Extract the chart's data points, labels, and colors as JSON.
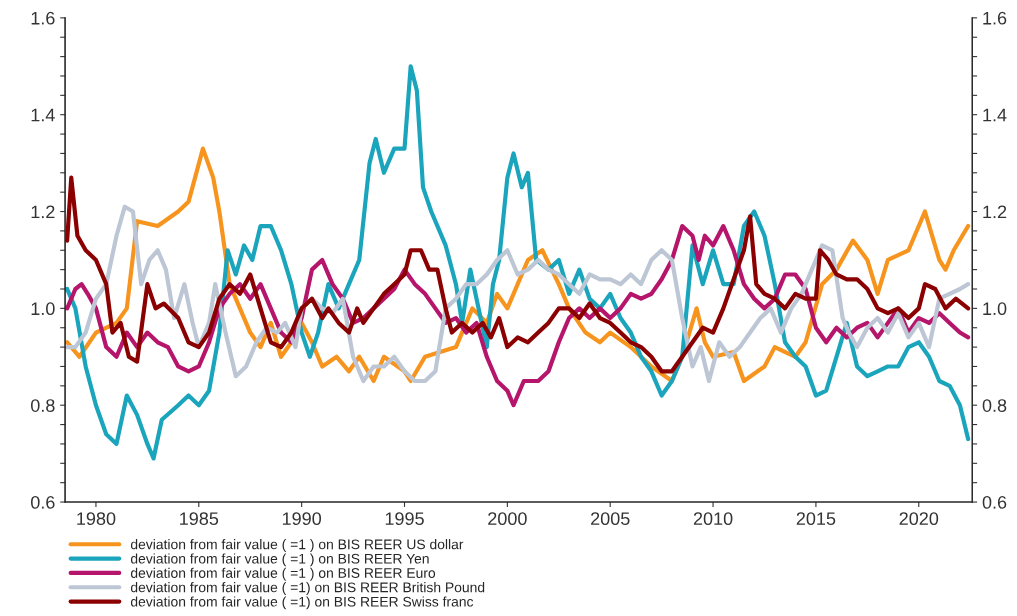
{
  "chart_data": {
    "type": "line",
    "xlim": [
      1978.5,
      2022.6
    ],
    "xticks": [
      1980,
      1985,
      1990,
      1995,
      2000,
      2005,
      2010,
      2015,
      2020
    ],
    "ylim": [
      0.6,
      1.6
    ],
    "yticks": [
      {
        "value": 0.6,
        "label": "0.6"
      },
      {
        "value": 0.64,
        "label": null
      },
      {
        "value": 0.68,
        "label": null
      },
      {
        "value": 0.72,
        "label": null
      },
      {
        "value": 0.76,
        "label": null
      },
      {
        "value": 0.8,
        "label": "0.8"
      },
      {
        "value": 0.84,
        "label": null
      },
      {
        "value": 0.88,
        "label": null
      },
      {
        "value": 0.92,
        "label": null
      },
      {
        "value": 0.96,
        "label": null
      },
      {
        "value": 1.0,
        "label": "1.0"
      },
      {
        "value": 1.04,
        "label": null
      },
      {
        "value": 1.08,
        "label": null
      },
      {
        "value": 1.12,
        "label": null
      },
      {
        "value": 1.16,
        "label": null
      },
      {
        "value": 1.2,
        "label": "1.2"
      },
      {
        "value": 1.24,
        "label": null
      },
      {
        "value": 1.28,
        "label": null
      },
      {
        "value": 1.32,
        "label": null
      },
      {
        "value": 1.36,
        "label": null
      },
      {
        "value": 1.4,
        "label": "1.4"
      },
      {
        "value": 1.44,
        "label": null
      },
      {
        "value": 1.48,
        "label": null
      },
      {
        "value": 1.52,
        "label": null
      },
      {
        "value": 1.56,
        "label": null
      },
      {
        "value": 1.6,
        "label": "1.6"
      }
    ],
    "y2lim": [
      0.6,
      1.6
    ],
    "y2ticks": [
      {
        "value": 0.6,
        "label": "0.6"
      },
      {
        "value": 0.64,
        "label": null
      },
      {
        "value": 0.68,
        "label": null
      },
      {
        "value": 0.72,
        "label": null
      },
      {
        "value": 0.76,
        "label": null
      },
      {
        "value": 0.8,
        "label": "0.8"
      },
      {
        "value": 0.84,
        "label": null
      },
      {
        "value": 0.88,
        "label": null
      },
      {
        "value": 0.92,
        "label": null
      },
      {
        "value": 0.96,
        "label": null
      },
      {
        "value": 1.0,
        "label": "1.0"
      },
      {
        "value": 1.04,
        "label": null
      },
      {
        "value": 1.08,
        "label": null
      },
      {
        "value": 1.12,
        "label": null
      },
      {
        "value": 1.16,
        "label": null
      },
      {
        "value": 1.2,
        "label": "1.2"
      },
      {
        "value": 1.24,
        "label": null
      },
      {
        "value": 1.28,
        "label": null
      },
      {
        "value": 1.32,
        "label": null
      },
      {
        "value": 1.36,
        "label": null
      },
      {
        "value": 1.4,
        "label": "1.4"
      },
      {
        "value": 1.44,
        "label": null
      },
      {
        "value": 1.48,
        "label": null
      },
      {
        "value": 1.52,
        "label": null
      },
      {
        "value": 1.56,
        "label": null
      },
      {
        "value": 1.6,
        "label": "1.6"
      }
    ],
    "legend": "bottom",
    "marker": "none",
    "line_style": "solid",
    "series": [
      {
        "name": "deviation from fair value ( =1 ) on BIS REER US dollar",
        "color": "#f7941d",
        "x": [
          1978.6,
          1979.2,
          1980,
          1981,
          1981.5,
          1982,
          1983,
          1984,
          1984.5,
          1985.2,
          1985.7,
          1986,
          1986.5,
          1987,
          1987.5,
          1988,
          1988.5,
          1989,
          1989.5,
          1990,
          1990.5,
          1991,
          1991.7,
          1992.3,
          1992.8,
          1993.5,
          1994,
          1995,
          1995.3,
          1996,
          1997.5,
          1998.3,
          1999,
          1999.5,
          2000,
          2001,
          2001.7,
          2002.5,
          2003,
          2003.8,
          2004.5,
          2005,
          2006,
          2007,
          2008,
          2008.5,
          2009.2,
          2009.6,
          2010,
          2011,
          2011.5,
          2012.5,
          2013,
          2014,
          2014.5,
          2015.3,
          2016,
          2016.8,
          2017.5,
          2018,
          2018.5,
          2019.5,
          2020.3,
          2021,
          2021.3,
          2021.7,
          2022.4
        ],
        "values": [
          0.93,
          0.9,
          0.95,
          0.97,
          1.0,
          1.18,
          1.17,
          1.2,
          1.22,
          1.33,
          1.27,
          1.2,
          1.05,
          1.0,
          0.95,
          0.92,
          0.97,
          0.9,
          0.93,
          0.97,
          0.93,
          0.88,
          0.9,
          0.87,
          0.9,
          0.85,
          0.9,
          0.87,
          0.85,
          0.9,
          0.92,
          1.0,
          0.97,
          1.03,
          1.0,
          1.1,
          1.12,
          1.05,
          1.0,
          0.95,
          0.93,
          0.95,
          0.92,
          0.88,
          0.85,
          0.9,
          1.0,
          0.93,
          0.9,
          0.91,
          0.85,
          0.88,
          0.92,
          0.9,
          0.93,
          1.05,
          1.08,
          1.14,
          1.1,
          1.03,
          1.1,
          1.12,
          1.2,
          1.1,
          1.08,
          1.12,
          1.17
        ]
      },
      {
        "name": "deviation from fair value ( =1 ) on BIS REER Yen",
        "color": "#1aa5bd",
        "x": [
          1978.6,
          1979,
          1979.5,
          1980,
          1980.5,
          1981,
          1981.5,
          1982,
          1982.5,
          1982.8,
          1983.2,
          1984,
          1984.5,
          1985,
          1985.5,
          1986,
          1986.4,
          1986.8,
          1987.2,
          1987.6,
          1988,
          1988.5,
          1989,
          1989.5,
          1990,
          1990.4,
          1990.8,
          1991.3,
          1991.8,
          1992.3,
          1992.8,
          1993.3,
          1993.6,
          1994,
          1994.5,
          1995,
          1995.3,
          1995.6,
          1995.9,
          1996.3,
          1997,
          1997.5,
          1997.8,
          1998.2,
          1998.7,
          1999,
          1999.3,
          1999.6,
          2000,
          2000.3,
          2000.7,
          2001,
          2001.4,
          2002,
          2002.5,
          2003,
          2003.5,
          2004,
          2004.5,
          2005,
          2005.5,
          2006,
          2006.5,
          2007,
          2007.5,
          2008,
          2008.5,
          2009,
          2009.5,
          2010,
          2010.5,
          2011,
          2011.5,
          2012,
          2012.5,
          2013,
          2013.5,
          2014,
          2014.5,
          2015,
          2015.5,
          2016,
          2016.5,
          2017,
          2017.5,
          2018,
          2018.5,
          2019,
          2019.5,
          2020,
          2020.5,
          2021,
          2021.5,
          2022,
          2022.4
        ],
        "values": [
          1.04,
          1.0,
          0.88,
          0.8,
          0.74,
          0.72,
          0.82,
          0.78,
          0.72,
          0.69,
          0.77,
          0.8,
          0.82,
          0.8,
          0.83,
          0.95,
          1.12,
          1.07,
          1.13,
          1.1,
          1.17,
          1.17,
          1.12,
          1.05,
          0.95,
          0.9,
          0.95,
          1.05,
          1.0,
          1.05,
          1.1,
          1.3,
          1.35,
          1.28,
          1.33,
          1.33,
          1.5,
          1.45,
          1.25,
          1.2,
          1.13,
          1.05,
          0.97,
          1.08,
          0.98,
          0.92,
          1.05,
          1.1,
          1.27,
          1.32,
          1.25,
          1.28,
          1.1,
          1.08,
          1.1,
          1.03,
          1.08,
          1.02,
          1.0,
          1.03,
          0.98,
          0.95,
          0.9,
          0.87,
          0.82,
          0.85,
          0.9,
          1.13,
          1.05,
          1.12,
          1.05,
          1.05,
          1.17,
          1.2,
          1.15,
          1.05,
          0.93,
          0.9,
          0.88,
          0.82,
          0.83,
          0.9,
          0.97,
          0.88,
          0.86,
          0.87,
          0.88,
          0.88,
          0.92,
          0.93,
          0.9,
          0.85,
          0.84,
          0.8,
          0.73
        ]
      },
      {
        "name": "deviation from fair value ( =1 ) on BIS REER Euro",
        "color": "#b5156b",
        "x": [
          1978.6,
          1979,
          1979.3,
          1979.6,
          1980,
          1980.5,
          1981,
          1981.5,
          1982,
          1982.5,
          1983,
          1983.5,
          1984,
          1984.5,
          1985,
          1985.5,
          1986,
          1986.5,
          1987,
          1987.5,
          1988,
          1988.5,
          1989,
          1989.5,
          1990,
          1990.5,
          1991,
          1991.5,
          1992,
          1992.5,
          1993,
          1993.5,
          1994,
          1994.5,
          1995,
          1995.5,
          1996,
          1996.5,
          1997,
          1997.5,
          1998,
          1998.5,
          1999,
          1999.5,
          2000,
          2000.3,
          2000.8,
          2001.5,
          2002,
          2002.5,
          2003,
          2003.5,
          2004,
          2004.5,
          2005,
          2005.5,
          2006,
          2006.5,
          2007,
          2007.5,
          2008,
          2008.5,
          2009,
          2009.3,
          2009.6,
          2010,
          2010.5,
          2011,
          2011.5,
          2012,
          2012.5,
          2013,
          2013.5,
          2014,
          2014.5,
          2015,
          2015.5,
          2016,
          2016.5,
          2017,
          2017.5,
          2018,
          2018.5,
          2019,
          2019.5,
          2020,
          2020.5,
          2021,
          2021.5,
          2022,
          2022.4
        ],
        "values": [
          1.0,
          1.04,
          1.05,
          1.03,
          1.0,
          0.92,
          0.9,
          0.95,
          0.92,
          0.95,
          0.93,
          0.92,
          0.88,
          0.87,
          0.88,
          0.93,
          1.0,
          1.03,
          1.05,
          1.02,
          1.05,
          1.0,
          0.95,
          0.93,
          0.98,
          1.08,
          1.1,
          1.05,
          1.02,
          0.97,
          0.98,
          1.0,
          1.02,
          1.04,
          1.08,
          1.05,
          1.03,
          1.0,
          0.97,
          0.98,
          0.95,
          0.97,
          0.9,
          0.85,
          0.83,
          0.8,
          0.85,
          0.85,
          0.87,
          0.93,
          0.98,
          1.0,
          0.98,
          1.0,
          0.98,
          1.0,
          1.03,
          1.02,
          1.03,
          1.06,
          1.1,
          1.17,
          1.15,
          1.1,
          1.15,
          1.13,
          1.17,
          1.12,
          1.05,
          1.02,
          1.0,
          1.02,
          1.07,
          1.07,
          1.04,
          0.96,
          0.93,
          0.96,
          0.94,
          0.96,
          0.97,
          0.94,
          0.97,
          1.0,
          0.95,
          0.98,
          0.97,
          0.99,
          0.97,
          0.95,
          0.94
        ]
      },
      {
        "name": "deviation from fair value ( =1) on BIS REER British Pound",
        "color": "#bdc6d4",
        "x": [
          1978.6,
          1979,
          1979.5,
          1980,
          1980.5,
          1981,
          1981.4,
          1981.8,
          1982.2,
          1982.6,
          1983,
          1983.4,
          1983.8,
          1984.3,
          1984.7,
          1985,
          1985.5,
          1985.8,
          1986.3,
          1986.8,
          1987.3,
          1987.8,
          1988.3,
          1988.8,
          1989.2,
          1989.7,
          1990,
          1990.5,
          1991,
          1991.5,
          1992,
          1992.5,
          1993,
          1993.5,
          1994,
          1994.5,
          1995,
          1995.5,
          1996,
          1996.5,
          1997,
          1997.5,
          1998,
          1998.5,
          1999,
          1999.5,
          2000,
          2000.5,
          2001,
          2001.5,
          2002,
          2002.5,
          2003,
          2003.5,
          2004,
          2004.5,
          2005,
          2005.5,
          2006,
          2006.5,
          2007,
          2007.5,
          2008,
          2008.5,
          2009,
          2009.4,
          2009.8,
          2010.3,
          2010.8,
          2011.3,
          2011.8,
          2012.3,
          2012.8,
          2013.3,
          2013.8,
          2014.3,
          2014.8,
          2015.3,
          2015.8,
          2016.3,
          2016.6,
          2017,
          2017.5,
          2018,
          2018.5,
          2019,
          2019.5,
          2020,
          2020.5,
          2021,
          2021.5,
          2022,
          2022.4
        ],
        "values": [
          0.92,
          0.92,
          0.95,
          1.02,
          1.05,
          1.15,
          1.21,
          1.2,
          1.05,
          1.1,
          1.12,
          1.08,
          0.98,
          1.05,
          0.97,
          0.92,
          0.97,
          1.05,
          0.95,
          0.86,
          0.88,
          0.93,
          0.96,
          0.95,
          0.97,
          0.92,
          1.0,
          1.02,
          1.0,
          0.99,
          1.02,
          0.9,
          0.85,
          0.88,
          0.88,
          0.9,
          0.87,
          0.85,
          0.85,
          0.87,
          1.0,
          1.02,
          1.05,
          1.05,
          1.07,
          1.1,
          1.12,
          1.07,
          1.08,
          1.1,
          1.08,
          1.07,
          1.05,
          1.03,
          1.07,
          1.06,
          1.06,
          1.05,
          1.07,
          1.05,
          1.1,
          1.12,
          1.1,
          0.98,
          0.88,
          0.92,
          0.85,
          0.93,
          0.9,
          0.92,
          0.95,
          0.98,
          1.0,
          0.95,
          1.0,
          1.03,
          1.08,
          1.13,
          1.12,
          0.98,
          0.95,
          0.92,
          0.96,
          0.98,
          0.95,
          0.99,
          0.94,
          0.97,
          0.92,
          1.02,
          1.03,
          1.04,
          1.05
        ]
      },
      {
        "name": "deviation from fair value ( =1) on BIS REER Swiss franc",
        "color": "#8b0000",
        "x": [
          1978.6,
          1978.8,
          1979.1,
          1979.5,
          1980,
          1980.5,
          1980.8,
          1981.2,
          1981.6,
          1982,
          1982.5,
          1982.9,
          1983.3,
          1984,
          1984.5,
          1985,
          1985.5,
          1986,
          1986.5,
          1987,
          1987.5,
          1988,
          1988.5,
          1989,
          1989.5,
          1990,
          1990.5,
          1991,
          1991.3,
          1991.8,
          1992.3,
          1992.7,
          1993,
          1993.5,
          1994,
          1994.5,
          1995,
          1995.3,
          1995.8,
          1996.2,
          1996.6,
          1997,
          1997.3,
          1997.8,
          1998.3,
          1998.8,
          1999.2,
          1999.6,
          2000,
          2000.5,
          2001,
          2001.5,
          2002,
          2002.5,
          2003,
          2003.5,
          2004,
          2004.5,
          2005,
          2005.5,
          2006,
          2006.5,
          2007,
          2007.5,
          2008,
          2008.5,
          2009,
          2009.5,
          2010,
          2010.5,
          2011,
          2011.5,
          2011.8,
          2012.1,
          2012.5,
          2013,
          2013.5,
          2014,
          2014.5,
          2015,
          2015.2,
          2015.6,
          2016,
          2016.5,
          2017,
          2017.5,
          2018,
          2018.5,
          2019,
          2019.5,
          2020,
          2020.3,
          2020.8,
          2021.3,
          2021.8,
          2022.4
        ],
        "values": [
          1.14,
          1.27,
          1.15,
          1.12,
          1.1,
          1.05,
          0.95,
          0.97,
          0.9,
          0.89,
          1.05,
          1.0,
          1.01,
          0.98,
          0.93,
          0.92,
          0.95,
          1.02,
          1.05,
          1.03,
          1.07,
          1.0,
          0.93,
          0.92,
          0.95,
          1.0,
          1.02,
          0.98,
          1.0,
          0.97,
          0.95,
          1.0,
          0.97,
          1.0,
          1.03,
          1.05,
          1.07,
          1.12,
          1.12,
          1.08,
          1.08,
          1.0,
          0.95,
          0.97,
          0.95,
          0.97,
          0.94,
          0.98,
          0.92,
          0.94,
          0.93,
          0.95,
          0.97,
          1.0,
          1.0,
          0.98,
          1.01,
          0.98,
          0.97,
          0.95,
          0.93,
          0.92,
          0.9,
          0.87,
          0.87,
          0.9,
          0.93,
          0.96,
          0.95,
          1.0,
          1.06,
          1.12,
          1.19,
          1.05,
          1.03,
          1.02,
          1.0,
          1.03,
          1.02,
          1.02,
          1.12,
          1.1,
          1.07,
          1.06,
          1.06,
          1.04,
          1.0,
          0.99,
          1.0,
          0.98,
          1.0,
          1.05,
          1.04,
          1.0,
          1.02,
          1.0
        ]
      }
    ]
  }
}
